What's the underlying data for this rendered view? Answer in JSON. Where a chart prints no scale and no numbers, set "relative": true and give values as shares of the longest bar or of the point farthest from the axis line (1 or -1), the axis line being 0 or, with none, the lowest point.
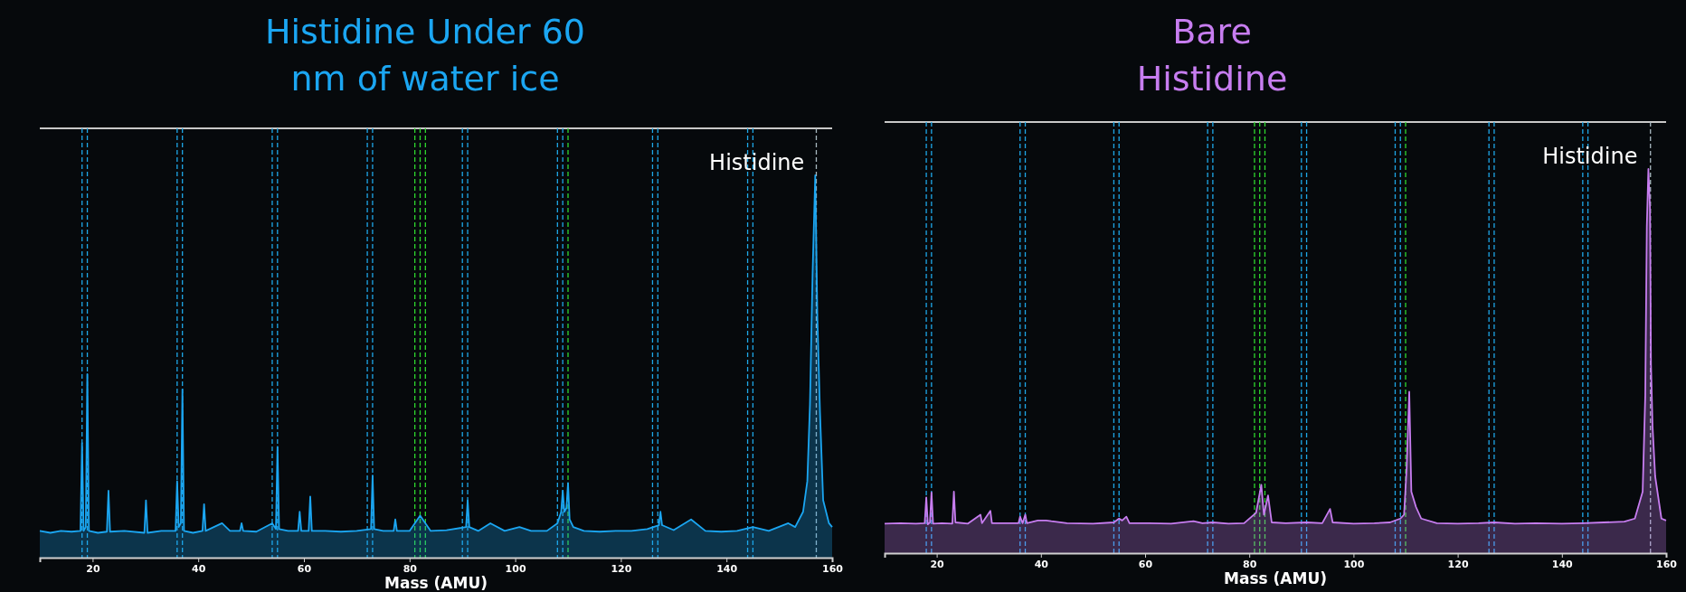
{
  "chart_data": [
    {
      "type": "area",
      "title": "Histidine Under 60 nm of water ice",
      "xlabel": "Mass (AMU)",
      "relative": true,
      "xlim": [
        10,
        160
      ],
      "xticks": [
        20,
        40,
        60,
        80,
        100,
        120,
        140,
        160
      ],
      "annotations": [
        {
          "text": "Histidine",
          "x": 156.8,
          "y": 1
        }
      ],
      "ref_lines": [
        {
          "axis": "x",
          "value": 18,
          "color": "#1ea7e8",
          "line_style": "dashed"
        },
        {
          "axis": "x",
          "value": 19,
          "color": "#1ea7e8",
          "line_style": "dashed"
        },
        {
          "axis": "x",
          "value": 36,
          "color": "#1ea7e8",
          "line_style": "dashed"
        },
        {
          "axis": "x",
          "value": 37,
          "color": "#1ea7e8",
          "line_style": "dashed"
        },
        {
          "axis": "x",
          "value": 54,
          "color": "#1ea7e8",
          "line_style": "dashed"
        },
        {
          "axis": "x",
          "value": 55,
          "color": "#1ea7e8",
          "line_style": "dashed"
        },
        {
          "axis": "x",
          "value": 72,
          "color": "#1ea7e8",
          "line_style": "dashed"
        },
        {
          "axis": "x",
          "value": 73,
          "color": "#1ea7e8",
          "line_style": "dashed"
        },
        {
          "axis": "x",
          "value": 81,
          "color": "#2ed82e",
          "line_style": "dashed"
        },
        {
          "axis": "x",
          "value": 82,
          "color": "#2ed82e",
          "line_style": "dashed"
        },
        {
          "axis": "x",
          "value": 83,
          "color": "#2ed82e",
          "line_style": "dashed"
        },
        {
          "axis": "x",
          "value": 90,
          "color": "#1ea7e8",
          "line_style": "dashed"
        },
        {
          "axis": "x",
          "value": 91,
          "color": "#1ea7e8",
          "line_style": "dashed"
        },
        {
          "axis": "x",
          "value": 108,
          "color": "#1ea7e8",
          "line_style": "dashed"
        },
        {
          "axis": "x",
          "value": 109,
          "color": "#1ea7e8",
          "line_style": "dashed"
        },
        {
          "axis": "x",
          "value": 110,
          "color": "#2ed82e",
          "line_style": "dashed"
        },
        {
          "axis": "x",
          "value": 126,
          "color": "#1ea7e8",
          "line_style": "dashed"
        },
        {
          "axis": "x",
          "value": 127,
          "color": "#1ea7e8",
          "line_style": "dashed"
        },
        {
          "axis": "x",
          "value": 144,
          "color": "#1ea7e8",
          "line_style": "dashed"
        },
        {
          "axis": "x",
          "value": 145,
          "color": "#1ea7e8",
          "line_style": "dashed"
        },
        {
          "axis": "x",
          "value": 157,
          "color": "#a8b8c0",
          "line_style": "dashed"
        }
      ],
      "series": [
        {
          "color": "#1ba6f2",
          "x": [
            10,
            12,
            14,
            16,
            17.7,
            18,
            18.3,
            18.7,
            19,
            19.3,
            21,
            22.7,
            23,
            23.3,
            26,
            29.8,
            30.1,
            30.4,
            33,
            35.7,
            36,
            36.3,
            36.7,
            37,
            37.3,
            39,
            40.8,
            41.1,
            41.4,
            44.5,
            46,
            47.9,
            48.2,
            48.5,
            51,
            54,
            54.7,
            55,
            55.3,
            57,
            58.9,
            59.2,
            59.5,
            60.9,
            61.2,
            61.5,
            64,
            67,
            70,
            72.7,
            73,
            73.3,
            75,
            77,
            77.3,
            77.6,
            80,
            82,
            84,
            87,
            90.7,
            91,
            91.3,
            93,
            95.3,
            98,
            100.8,
            103,
            106,
            108,
            108.7,
            109,
            109.3,
            109.7,
            110,
            110.3,
            111,
            113,
            116,
            119,
            122,
            125,
            127.2,
            127.5,
            127.8,
            130,
            133.3,
            136,
            139,
            142,
            145,
            148,
            151.7,
            153,
            154.5,
            155.3,
            155.8,
            156.3,
            156.8,
            157.2,
            157.7,
            158.3,
            159.4,
            160
          ],
          "values": [
            0.07,
            0.065,
            0.07,
            0.068,
            0.07,
            0.3,
            0.07,
            0.08,
            0.48,
            0.07,
            0.065,
            0.068,
            0.175,
            0.068,
            0.07,
            0.065,
            0.15,
            0.065,
            0.07,
            0.07,
            0.2,
            0.08,
            0.09,
            0.44,
            0.07,
            0.065,
            0.07,
            0.14,
            0.07,
            0.09,
            0.07,
            0.07,
            0.09,
            0.07,
            0.068,
            0.09,
            0.075,
            0.29,
            0.075,
            0.07,
            0.07,
            0.12,
            0.07,
            0.07,
            0.16,
            0.07,
            0.07,
            0.068,
            0.07,
            0.075,
            0.215,
            0.075,
            0.07,
            0.07,
            0.1,
            0.07,
            0.07,
            0.11,
            0.07,
            0.072,
            0.08,
            0.15,
            0.08,
            0.07,
            0.09,
            0.07,
            0.08,
            0.07,
            0.07,
            0.09,
            0.12,
            0.175,
            0.12,
            0.13,
            0.195,
            0.1,
            0.08,
            0.07,
            0.068,
            0.07,
            0.07,
            0.075,
            0.085,
            0.12,
            0.085,
            0.072,
            0.1,
            0.07,
            0.068,
            0.07,
            0.08,
            0.07,
            0.09,
            0.08,
            0.12,
            0.2,
            0.4,
            0.745,
            1,
            0.63,
            0.38,
            0.15,
            0.09,
            0.08
          ]
        }
      ]
    },
    {
      "type": "area",
      "title": "Bare Histidine",
      "xlabel": "Mass (AMU)",
      "relative": true,
      "xlim": [
        10,
        160
      ],
      "xticks": [
        20,
        40,
        60,
        80,
        100,
        120,
        140,
        160
      ],
      "annotations": [
        {
          "text": "Histidine",
          "x": 156.6,
          "y": 1
        }
      ],
      "ref_lines": [
        {
          "axis": "x",
          "value": 18,
          "color": "#1ea7e8",
          "line_style": "dashed"
        },
        {
          "axis": "x",
          "value": 19,
          "color": "#1ea7e8",
          "line_style": "dashed"
        },
        {
          "axis": "x",
          "value": 36,
          "color": "#1ea7e8",
          "line_style": "dashed"
        },
        {
          "axis": "x",
          "value": 37,
          "color": "#1ea7e8",
          "line_style": "dashed"
        },
        {
          "axis": "x",
          "value": 54,
          "color": "#1ea7e8",
          "line_style": "dashed"
        },
        {
          "axis": "x",
          "value": 55,
          "color": "#1ea7e8",
          "line_style": "dashed"
        },
        {
          "axis": "x",
          "value": 72,
          "color": "#1ea7e8",
          "line_style": "dashed"
        },
        {
          "axis": "x",
          "value": 73,
          "color": "#1ea7e8",
          "line_style": "dashed"
        },
        {
          "axis": "x",
          "value": 81,
          "color": "#2ed82e",
          "line_style": "dashed"
        },
        {
          "axis": "x",
          "value": 82,
          "color": "#2ed82e",
          "line_style": "dashed"
        },
        {
          "axis": "x",
          "value": 83,
          "color": "#2ed82e",
          "line_style": "dashed"
        },
        {
          "axis": "x",
          "value": 90,
          "color": "#1ea7e8",
          "line_style": "dashed"
        },
        {
          "axis": "x",
          "value": 91,
          "color": "#1ea7e8",
          "line_style": "dashed"
        },
        {
          "axis": "x",
          "value": 108,
          "color": "#1ea7e8",
          "line_style": "dashed"
        },
        {
          "axis": "x",
          "value": 109,
          "color": "#1ea7e8",
          "line_style": "dashed"
        },
        {
          "axis": "x",
          "value": 110,
          "color": "#2ed82e",
          "line_style": "dashed"
        },
        {
          "axis": "x",
          "value": 126,
          "color": "#1ea7e8",
          "line_style": "dashed"
        },
        {
          "axis": "x",
          "value": 127,
          "color": "#1ea7e8",
          "line_style": "dashed"
        },
        {
          "axis": "x",
          "value": 144,
          "color": "#1ea7e8",
          "line_style": "dashed"
        },
        {
          "axis": "x",
          "value": 145,
          "color": "#1ea7e8",
          "line_style": "dashed"
        },
        {
          "axis": "x",
          "value": 157,
          "color": "#a8b8c0",
          "line_style": "dashed"
        }
      ],
      "series": [
        {
          "color": "#c77df0",
          "x": [
            10,
            13,
            16,
            17.7,
            18,
            18.3,
            18.7,
            19,
            19.3,
            21,
            23,
            23.3,
            23.6,
            26,
            28.4,
            28.7,
            30.3,
            30.6,
            33,
            35.7,
            36,
            36.5,
            37,
            37.3,
            39.4,
            41,
            42,
            45,
            50,
            54,
            55,
            55.6,
            56.4,
            57,
            60,
            65,
            69.3,
            71,
            73,
            76,
            79,
            81.3,
            82.3,
            82.8,
            83.6,
            84.3,
            87,
            91,
            94,
            95.5,
            96,
            100,
            104,
            107,
            109,
            109.7,
            110.2,
            110.7,
            111.1,
            112,
            113,
            116,
            120,
            124,
            127,
            131,
            135,
            140,
            144,
            148,
            152,
            154,
            155.5,
            156,
            156.3,
            156.6,
            156.9,
            157.1,
            157.4,
            157.9,
            159.1,
            160
          ],
          "values": [
            0.077,
            0.078,
            0.077,
            0.078,
            0.145,
            0.075,
            0.08,
            0.158,
            0.077,
            0.078,
            0.077,
            0.16,
            0.08,
            0.077,
            0.1,
            0.078,
            0.11,
            0.078,
            0.078,
            0.078,
            0.095,
            0.078,
            0.1,
            0.078,
            0.085,
            0.085,
            0.083,
            0.078,
            0.077,
            0.08,
            0.09,
            0.085,
            0.095,
            0.078,
            0.078,
            0.077,
            0.083,
            0.078,
            0.08,
            0.077,
            0.078,
            0.105,
            0.178,
            0.1,
            0.15,
            0.08,
            0.078,
            0.08,
            0.078,
            0.115,
            0.08,
            0.077,
            0.078,
            0.08,
            0.09,
            0.1,
            0.22,
            0.42,
            0.16,
            0.12,
            0.09,
            0.078,
            0.077,
            0.078,
            0.08,
            0.077,
            0.078,
            0.077,
            0.078,
            0.08,
            0.082,
            0.09,
            0.16,
            0.41,
            0.85,
            1,
            0.9,
            0.49,
            0.33,
            0.2,
            0.09,
            0.085
          ]
        }
      ]
    }
  ]
}
